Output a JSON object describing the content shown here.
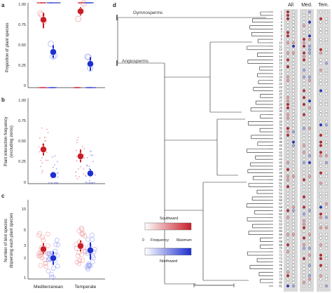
{
  "colors": {
    "southward": "#c81e28",
    "northward": "#1d2fd0",
    "southward_light": "#f0a0a4",
    "northward_light": "#a0a8f2",
    "column_bg": "#d9d9d9"
  },
  "panels": {
    "a": {
      "letter": "a",
      "ylabel": "Proportion of plant species",
      "ticks": [
        "0",
        "0.25",
        "0.50",
        "0.75",
        "1.00"
      ]
    },
    "b": {
      "letter": "b",
      "ylabel_line1": "Plant interaction frequency",
      "ylabel_line2": "(excluding zeros)",
      "ticks": [
        "0",
        "0.25",
        "0.50",
        "0.75",
        "1.00"
      ]
    },
    "c": {
      "letter": "c",
      "ylabel_line1": "Number of bird species",
      "ylabel_line2": "dispersing each plant species",
      "ticks": [
        "1",
        "2",
        "3",
        "5",
        "10"
      ]
    },
    "d": {
      "letter": "d"
    }
  },
  "x_labels": [
    "Mediterranean",
    "Temperate"
  ],
  "clades": {
    "gymnosperms": "Gymnosperms",
    "angiosperms": "Angiosperms"
  },
  "column_headers": [
    "All",
    "Med.",
    "Tem."
  ],
  "legend": {
    "southward": "Southward",
    "frequency": "Frequency",
    "zero": "0",
    "maximum": "Maximum",
    "northward": "Northward"
  },
  "chart_data": [
    {
      "type": "scatter",
      "panel": "a",
      "ylabel": "Proportion of plant species",
      "categories": [
        "Mediterranean",
        "Temperate"
      ],
      "ylim": [
        0,
        1
      ],
      "series": [
        {
          "name": "Southward",
          "means": [
            0.8,
            0.9
          ],
          "ci_low": [
            0.7,
            0.85
          ],
          "ci_high": [
            0.88,
            0.95
          ]
        },
        {
          "name": "Northward",
          "means": [
            0.42,
            0.28
          ],
          "ci_low": [
            0.35,
            0.2
          ],
          "ci_high": [
            0.5,
            0.36
          ]
        }
      ]
    },
    {
      "type": "scatter",
      "panel": "b",
      "ylabel": "Plant interaction frequency (excluding zeros)",
      "categories": [
        "Mediterranean",
        "Temperate"
      ],
      "ylim": [
        0,
        1
      ],
      "series": [
        {
          "name": "Southward",
          "means": [
            0.4,
            0.32
          ],
          "ci_low": [
            0.33,
            0.25
          ],
          "ci_high": [
            0.47,
            0.4
          ]
        },
        {
          "name": "Northward",
          "means": [
            0.1,
            0.12
          ],
          "ci_low": [
            0.07,
            0.08
          ],
          "ci_high": [
            0.14,
            0.17
          ]
        }
      ]
    },
    {
      "type": "scatter",
      "panel": "c",
      "ylabel": "Number of bird species dispersing each plant species",
      "categories": [
        "Mediterranean",
        "Temperate"
      ],
      "yscale": "log",
      "ylim": [
        1,
        14
      ],
      "series": [
        {
          "name": "Southward",
          "means": [
            2.7,
            3.0
          ],
          "ci_low": [
            2.3,
            2.5
          ],
          "ci_high": [
            3.3,
            3.6
          ]
        },
        {
          "name": "Northward",
          "means": [
            2.0,
            2.6
          ],
          "ci_low": [
            1.6,
            1.9
          ],
          "ci_high": [
            2.5,
            3.4
          ]
        }
      ]
    }
  ],
  "tree": {
    "tips": [
      "1",
      "2",
      "3",
      "4",
      "5",
      "6",
      "7",
      "8",
      "9",
      "10",
      "11",
      "12",
      "13",
      "14",
      "15",
      "16",
      "17",
      "18",
      "19",
      "20",
      "21",
      "22",
      "23",
      "24",
      "25",
      "26",
      "27",
      "28",
      "29",
      "30",
      "31",
      "32",
      "33",
      "34",
      "35",
      "36",
      "37",
      "38",
      "39",
      "40",
      "41",
      "42",
      "43",
      "44",
      "45",
      "46",
      "47",
      "48",
      "49",
      "50",
      "51",
      "52",
      "53",
      "54",
      "55",
      "56",
      "57",
      "58",
      "59",
      "60",
      "61",
      "62",
      "63",
      "64",
      "65",
      "66",
      "67",
      "68",
      "69",
      "70",
      "71",
      "72",
      "73",
      "74",
      "75",
      "76",
      "77",
      "78",
      "79",
      "80",
      "81"
    ]
  }
}
